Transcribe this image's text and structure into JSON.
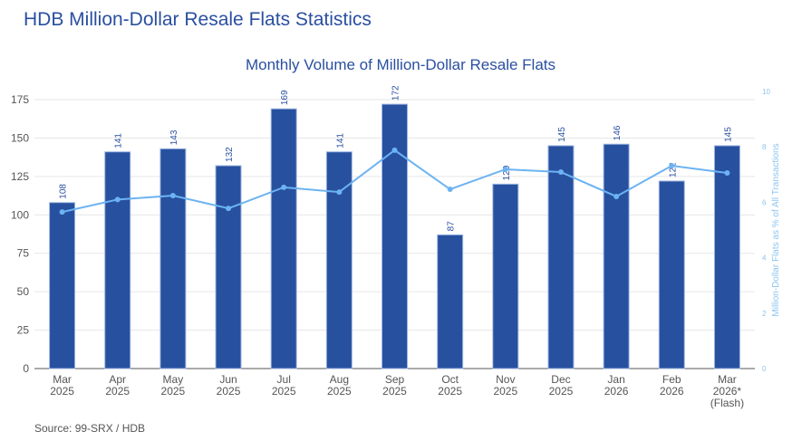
{
  "page": {
    "title": "HDB Million-Dollar Resale Flats Statistics",
    "source": "Source: 99-SRX / HDB"
  },
  "chart_data": {
    "type": "bar",
    "title": "Monthly Volume of Million-Dollar Resale Flats",
    "categories": [
      [
        "Mar",
        "2025"
      ],
      [
        "Apr",
        "2025"
      ],
      [
        "May",
        "2025"
      ],
      [
        "Jun",
        "2025"
      ],
      [
        "Jul",
        "2025"
      ],
      [
        "Aug",
        "2025"
      ],
      [
        "Sep",
        "2025"
      ],
      [
        "Oct",
        "2025"
      ],
      [
        "Nov",
        "2025"
      ],
      [
        "Dec",
        "2025"
      ],
      [
        "Jan",
        "2026"
      ],
      [
        "Feb",
        "2026"
      ],
      [
        "Mar",
        "2026*",
        "(Flash)"
      ]
    ],
    "series": [
      {
        "name": "Million-Dollar Flats",
        "type": "bar",
        "axis": "left",
        "color": "#27509f",
        "values": [
          108,
          141,
          143,
          132,
          169,
          141,
          172,
          87,
          120,
          145,
          146,
          122,
          145
        ]
      },
      {
        "name": "Million-Dollar Flats as % of All Transactions",
        "type": "line",
        "axis": "right",
        "color": "#6cb3f2",
        "values": [
          5.65,
          6.1,
          6.24,
          5.78,
          6.54,
          6.37,
          7.88,
          6.47,
          7.19,
          7.09,
          6.21,
          7.32,
          7.06
        ]
      }
    ],
    "ylim": [
      0,
      175
    ],
    "yticks": [
      0,
      25,
      50,
      75,
      100,
      125,
      150,
      175
    ],
    "y2lim": [
      0,
      10
    ],
    "y2ticks": [
      0,
      2,
      4,
      6,
      8,
      10
    ],
    "ylabel": "",
    "y2label": "Million-Dollar Flats as % of All Transactions",
    "grid": true
  }
}
